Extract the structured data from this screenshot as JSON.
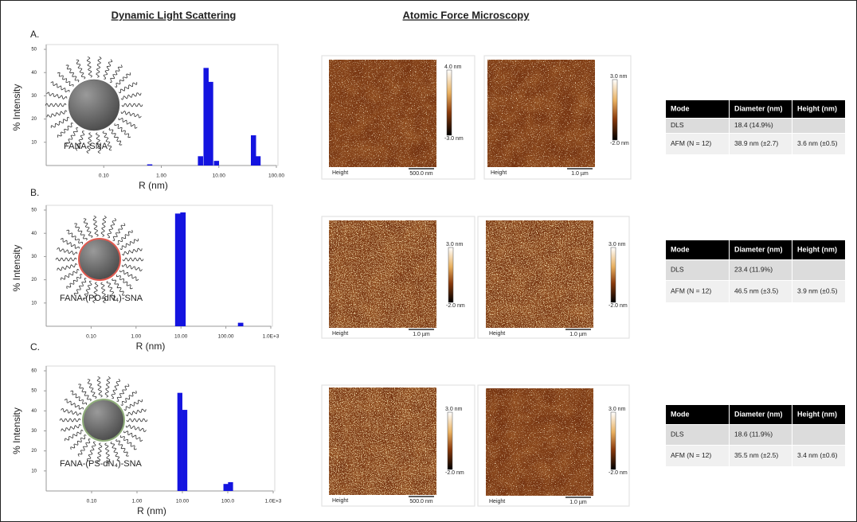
{
  "headers": {
    "dls": "Dynamic Light Scattering",
    "afm": "Atomic Force Microscopy"
  },
  "chart_data": [
    {
      "type": "bar",
      "panel_label": "A.",
      "annotation": "FANA-SNA",
      "xlabel": "R (nm)",
      "ylabel": "% Intensity",
      "log_x": true,
      "x": [
        0.63,
        4.8,
        6.0,
        7.2,
        9.1,
        40,
        48
      ],
      "series": [
        {
          "color": "#1414e0",
          "values": [
            0.5,
            4,
            42,
            36,
            2,
            13,
            4
          ]
        }
      ],
      "xlim": [
        0.01,
        100
      ],
      "ylim": [
        0,
        50
      ],
      "yticks": [
        10,
        20,
        30,
        40,
        50
      ],
      "xticks": [
        {
          "value": 0.1,
          "label": "0.10"
        },
        {
          "value": 1,
          "label": "1.00"
        },
        {
          "value": 10,
          "label": "10.00"
        },
        {
          "value": 100,
          "label": "100.00"
        }
      ]
    },
    {
      "type": "bar",
      "panel_label": "B.",
      "annotation": "FANA-(PO-dN₄)-SNA",
      "xlabel": "R (nm)",
      "ylabel": "% Intensity",
      "log_x": true,
      "x": [
        8.5,
        11.1,
        213
      ],
      "series": [
        {
          "color": "#1414e0",
          "values": [
            48.5,
            49,
            1.5
          ]
        }
      ],
      "xlim": [
        0.01,
        1000
      ],
      "ylim": [
        0,
        50
      ],
      "yticks": [
        10,
        20,
        30,
        40,
        50
      ],
      "xticks": [
        {
          "value": 0.1,
          "label": "0.10"
        },
        {
          "value": 1,
          "label": "1.00"
        },
        {
          "value": 10,
          "label": "10.00"
        },
        {
          "value": 100,
          "label": "100.00"
        },
        {
          "value": 1000,
          "label": "1.0E+3"
        }
      ]
    },
    {
      "type": "bar",
      "panel_label": "C.",
      "annotation": "FANA-(PS-dN₄)-SNA",
      "xlabel": "R (nm)",
      "ylabel": "% Intensity",
      "log_x": true,
      "x": [
        8.8,
        11.3,
        91,
        115
      ],
      "series": [
        {
          "color": "#1414e0",
          "values": [
            49,
            40.5,
            3.5,
            4.4
          ]
        }
      ],
      "xlim": [
        0.01,
        1000
      ],
      "ylim": [
        0,
        60
      ],
      "yticks": [
        10,
        20,
        30,
        40,
        50,
        60
      ],
      "xticks": [
        {
          "value": 0.1,
          "label": "0.10"
        },
        {
          "value": 1,
          "label": "1.00"
        },
        {
          "value": 10,
          "label": "10.00"
        },
        {
          "value": 100,
          "label": "100.0"
        },
        {
          "value": 1000,
          "label": "1.0E+3"
        }
      ]
    }
  ],
  "afm": [
    [
      {
        "top": "4.0 nm",
        "bottom": "-3.0 nm",
        "label": "Height",
        "scale_bar": "500.0 nm"
      },
      {
        "top": "3.0 nm",
        "bottom": "-2.0 nm",
        "label": "Height",
        "scale_bar": "1.0 µm"
      }
    ],
    [
      {
        "top": "3.0 nm",
        "bottom": "-2.0 nm",
        "label": "Height",
        "scale_bar": "1.0 µm"
      },
      {
        "top": "3.0 nm",
        "bottom": "-2.0 nm",
        "label": "Height",
        "scale_bar": "1.0 µm"
      }
    ],
    [
      {
        "top": "3.0 nm",
        "bottom": "-2.0 nm",
        "label": "Height",
        "scale_bar": "500.0 nm"
      },
      {
        "top": "3.0 nm",
        "bottom": "-2.0 nm",
        "label": "Height",
        "scale_bar": "1.0 µm"
      }
    ]
  ],
  "tables": [
    {
      "header": [
        "Mode",
        "Diameter (nm)",
        "Height (nm)"
      ],
      "rows": [
        [
          "DLS",
          "18.4 (14.9%)"
        ],
        [
          "AFM (N = 12)",
          "38.9 nm (±2.7)",
          "3.6 nm (±0.5)"
        ]
      ]
    },
    {
      "header": [
        "Mode",
        "Diameter (nm)",
        "Height (nm)"
      ],
      "rows": [
        [
          "DLS",
          "23.4 (11.9%)"
        ],
        [
          "AFM (N = 12)",
          "46.5 nm (±3.5)",
          "3.9 nm (±0.5)"
        ]
      ]
    },
    {
      "header": [
        "Mode",
        "Diameter (nm)",
        "Height (nm)"
      ],
      "rows": [
        [
          "DLS",
          "18.6 (11.9%)"
        ],
        [
          "AFM (N = 12)",
          "35.5 nm (±2.5)",
          "3.4 nm (±0.6)"
        ]
      ]
    }
  ]
}
